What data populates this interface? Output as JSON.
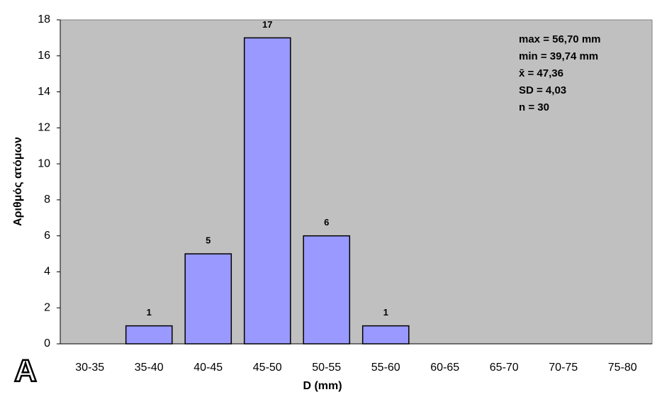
{
  "chart_data": {
    "type": "bar",
    "panel_label": "A",
    "xlabel": "D (mm)",
    "ylabel": "Αριθμός ατόμων",
    "categories": [
      "30-35",
      "35-40",
      "40-45",
      "45-50",
      "50-55",
      "55-60",
      "60-65",
      "65-70",
      "70-75",
      "75-80"
    ],
    "values": [
      0,
      1,
      5,
      17,
      6,
      1,
      0,
      0,
      0,
      0
    ],
    "color": "#9999ff",
    "ylim": [
      0,
      18
    ],
    "yticks": [
      0,
      2,
      4,
      6,
      8,
      10,
      12,
      14,
      16,
      18
    ],
    "annotations": [
      "max = 56,70 mm",
      "min = 39,74 mm",
      "x̄ = 47,36",
      "SD = 4,03",
      "n = 30"
    ]
  }
}
